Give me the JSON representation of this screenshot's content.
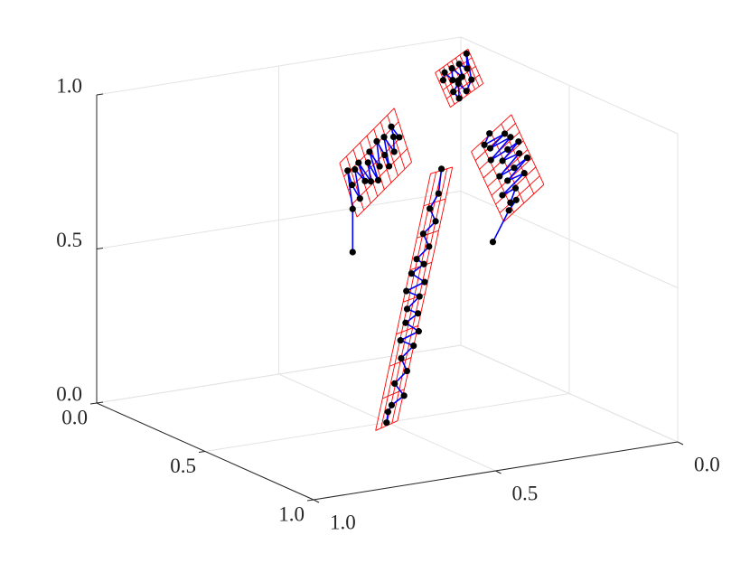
{
  "chart_data": {
    "type": "scatter3d",
    "xlim": [
      0,
      1
    ],
    "ylim": [
      0,
      1
    ],
    "zlim": [
      0,
      1
    ],
    "xticks": [
      {
        "value": 0,
        "label": "0.0"
      },
      {
        "value": 0.5,
        "label": "0.5"
      },
      {
        "value": 1,
        "label": "1.0"
      }
    ],
    "yticks": [
      {
        "value": 0,
        "label": "0.0"
      },
      {
        "value": 0.5,
        "label": "0.5"
      },
      {
        "value": 1,
        "label": "1.0"
      }
    ],
    "zticks": [
      {
        "value": 0,
        "label": "0.0"
      },
      {
        "value": 0.5,
        "label": "0.5"
      },
      {
        "value": 1,
        "label": "1.0"
      }
    ],
    "grid": true,
    "line_color": "#0000ff",
    "marker_color": "#000000",
    "mesh_color": "#ff0000",
    "mesh_divisions": [
      8,
      4
    ],
    "series": [
      {
        "x": [
          0.9,
          0.89,
          0.89,
          0.88,
          0.87,
          0.86,
          0.85,
          0.84,
          0.83,
          0.83,
          0.82,
          0.81,
          0.81,
          0.8,
          0.79,
          0.79,
          0.78,
          0.77,
          0.77,
          0.76,
          0.75,
          0.74,
          0.73,
          0.72,
          0.7
        ],
        "y": [
          0.74,
          0.73,
          0.72,
          0.68,
          0.7,
          0.66,
          0.67,
          0.63,
          0.66,
          0.61,
          0.64,
          0.6,
          0.63,
          0.59,
          0.62,
          0.57,
          0.6,
          0.56,
          0.58,
          0.54,
          0.55,
          0.51,
          0.52,
          0.49,
          0.47
        ],
        "z": [
          0.17,
          0.2,
          0.22,
          0.24,
          0.28,
          0.31,
          0.35,
          0.38,
          0.4,
          0.42,
          0.45,
          0.47,
          0.49,
          0.52,
          0.54,
          0.56,
          0.59,
          0.61,
          0.63,
          0.66,
          0.7,
          0.73,
          0.77,
          0.81,
          0.88
        ],
        "mesh": {
          "x": [
            0.9,
            0.9,
            0.7,
            0.7
          ],
          "y": [
            0.77,
            0.71,
            0.5,
            0.44
          ],
          "z": [
            0.15,
            0.17,
            0.87,
            0.88
          ]
        }
      },
      {
        "x": [
          0.24,
          0.24,
          0.2,
          0.22,
          0.24,
          0.2,
          0.23,
          0.2,
          0.24,
          0.21,
          0.24,
          0.2,
          0.23,
          0.2,
          0.22,
          0.24,
          0.2,
          0.23,
          0.21,
          0.2,
          0.22
        ],
        "y": [
          0.44,
          0.44,
          0.43,
          0.43,
          0.42,
          0.41,
          0.4,
          0.4,
          0.39,
          0.38,
          0.37,
          0.37,
          0.36,
          0.35,
          0.34,
          0.34,
          0.33,
          0.32,
          0.31,
          0.31,
          0.3
        ],
        "z": [
          0.46,
          0.6,
          0.71,
          0.67,
          0.63,
          0.71,
          0.68,
          0.73,
          0.68,
          0.73,
          0.68,
          0.76,
          0.72,
          0.79,
          0.75,
          0.72,
          0.8,
          0.76,
          0.8,
          0.83,
          0.8
        ],
        "mesh": {
          "x": [
            0.18,
            0.26,
            0.18,
            0.26
          ],
          "y": [
            0.44,
            0.44,
            0.29,
            0.29
          ],
          "z": [
            0.73,
            0.58,
            0.88,
            0.73
          ]
        }
      },
      {
        "x": [
          0.3,
          0.31,
          0.32,
          0.32,
          0.33,
          0.34,
          0.35,
          0.35,
          0.36,
          0.37,
          0.38,
          0.38,
          0.39,
          0.4,
          0.41,
          0.41,
          0.42,
          0.43,
          0.44,
          0.44,
          0.45
        ],
        "y": [
          0.1,
          0.12,
          0.07,
          0.11,
          0.06,
          0.12,
          0.08,
          0.05,
          0.1,
          0.06,
          0.12,
          0.08,
          0.05,
          0.11,
          0.07,
          0.13,
          0.1,
          0.12,
          0.11,
          0.13,
          0.18
        ],
        "z": [
          0.8,
          0.77,
          0.8,
          0.76,
          0.79,
          0.73,
          0.76,
          0.78,
          0.73,
          0.75,
          0.69,
          0.71,
          0.74,
          0.68,
          0.7,
          0.64,
          0.66,
          0.62,
          0.63,
          0.6,
          0.51
        ],
        "mesh": {
          "x": [
            0.3,
            0.3,
            0.45,
            0.45
          ],
          "y": [
            0.15,
            0.04,
            0.15,
            0.04
          ],
          "z": [
            0.75,
            0.85,
            0.57,
            0.67
          ]
        }
      },
      {
        "x": [
          0.12,
          0.11,
          0.13,
          0.11,
          0.14,
          0.11,
          0.13,
          0.11,
          0.15,
          0.16,
          0.14,
          0.15,
          0.16,
          0.14
        ],
        "y": [
          0.12,
          0.11,
          0.1,
          0.09,
          0.08,
          0.07,
          0.06,
          0.05,
          0.06,
          0.08,
          0.09,
          0.11,
          0.1,
          0.09
        ],
        "z": [
          0.92,
          0.94,
          0.92,
          0.95,
          0.93,
          0.96,
          0.95,
          0.99,
          0.92,
          0.89,
          0.91,
          0.89,
          0.87,
          0.92
        ],
        "mesh": {
          "x": [
            0.1,
            0.17,
            0.1,
            0.17
          ],
          "y": [
            0.13,
            0.13,
            0.04,
            0.04
          ],
          "z": [
            0.94,
            0.85,
            1.0,
            0.91
          ]
        }
      }
    ]
  }
}
